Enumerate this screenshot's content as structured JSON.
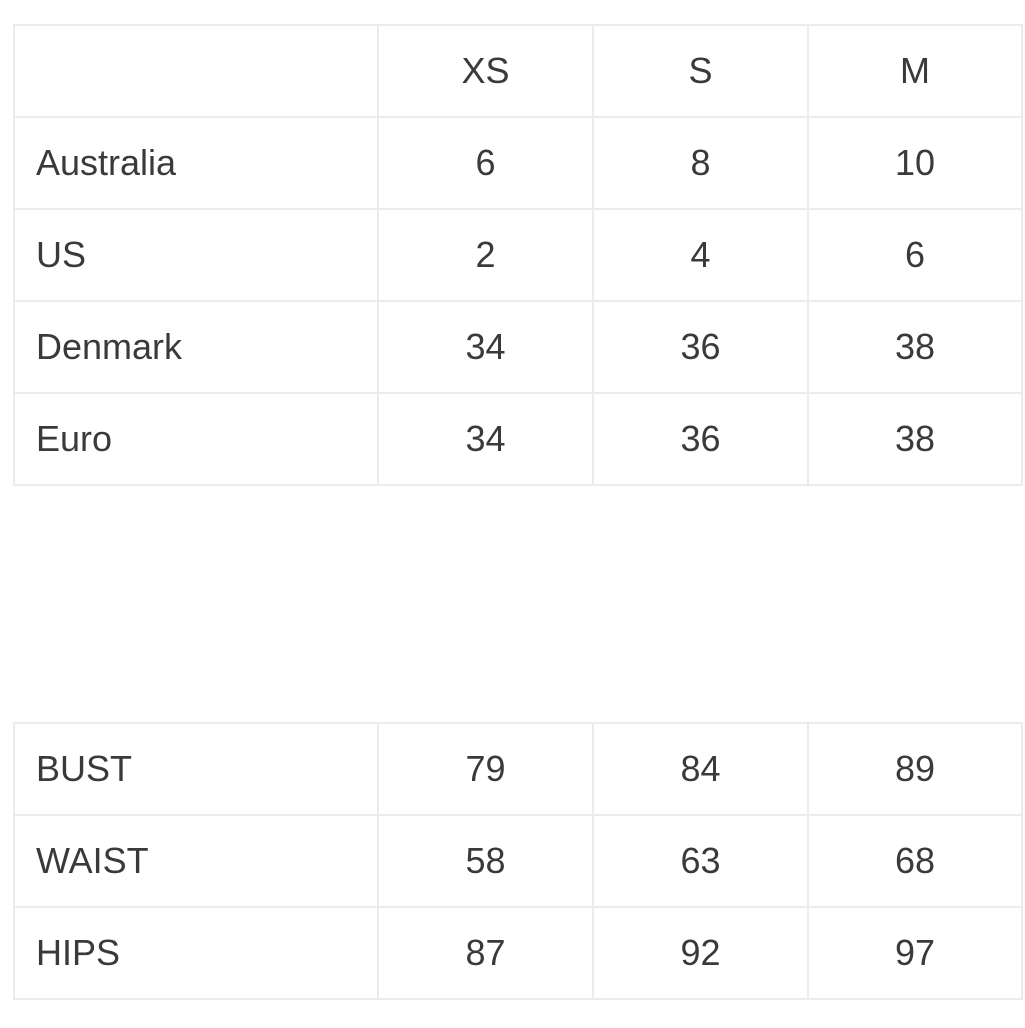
{
  "colors": {
    "background": "#ffffff",
    "border": "#ebebeb",
    "text": "#3a3a3a"
  },
  "size_conversion_table": {
    "column_headers": [
      "",
      "XS",
      "S",
      "M"
    ],
    "rows": [
      {
        "label": "Australia",
        "xs": "6",
        "s": "8",
        "m": "10"
      },
      {
        "label": "US",
        "xs": "2",
        "s": "4",
        "m": "6"
      },
      {
        "label": "Denmark",
        "xs": "34",
        "s": "36",
        "m": "38"
      },
      {
        "label": "Euro",
        "xs": "34",
        "s": "36",
        "m": "38"
      }
    ]
  },
  "body_measurements_table": {
    "rows": [
      {
        "label": "BUST",
        "xs": "79",
        "s": "84",
        "m": "89"
      },
      {
        "label": "WAIST",
        "xs": "58",
        "s": "63",
        "m": "68"
      },
      {
        "label": "HIPS",
        "xs": "87",
        "s": "92",
        "m": "97"
      }
    ]
  }
}
